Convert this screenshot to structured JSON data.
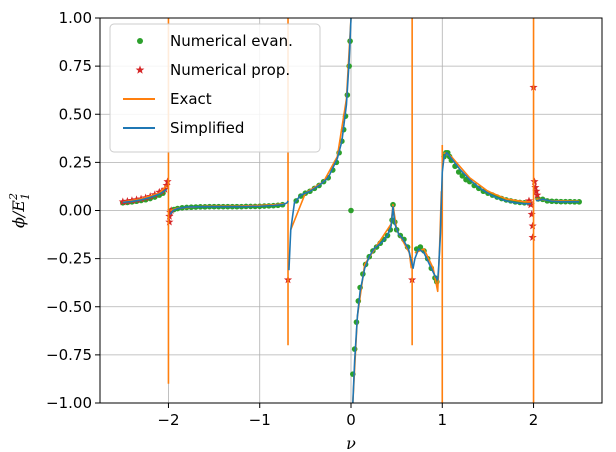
{
  "chart_data": {
    "type": "scatter",
    "title": "",
    "xlabel": "ν",
    "ylabel_main": "ϕ/E",
    "ylabel_sub": "1",
    "ylabel_sup": "2",
    "xlim": [
      -2.75,
      2.75
    ],
    "ylim": [
      -1.0,
      1.0
    ],
    "x_ticks": [
      -2,
      -1,
      0,
      1,
      2
    ],
    "x_tick_labels": [
      "−2",
      "−1",
      "0",
      "1",
      "2"
    ],
    "y_ticks": [
      -1.0,
      -0.75,
      -0.5,
      -0.25,
      0.0,
      0.25,
      0.5,
      0.75,
      1.0
    ],
    "y_tick_labels": [
      "−1.00",
      "−0.75",
      "−0.50",
      "−0.25",
      "0.00",
      "0.25",
      "0.50",
      "0.75",
      "1.00"
    ],
    "grid": true,
    "legend_position": "top-left",
    "legend": [
      {
        "label": "Numerical evan.",
        "marker": "dot",
        "color": "#2ca02c"
      },
      {
        "label": "Numerical prop.",
        "marker": "star",
        "color": "#d62728"
      },
      {
        "label": "Exact",
        "marker": "line",
        "color": "#ff7f0e"
      },
      {
        "label": "Simplified",
        "marker": "line",
        "color": "#1f77b4"
      }
    ],
    "colors": {
      "evan": "#2ca02c",
      "prop": "#d62728",
      "exact": "#ff7f0e",
      "simplified": "#1f77b4",
      "grid": "#b0b0b0"
    },
    "series": [
      {
        "name": "Simplified",
        "kind": "line",
        "segments": [
          [
            [
              -2.5,
              0.042
            ],
            [
              -2.4,
              0.047
            ],
            [
              -2.3,
              0.055
            ],
            [
              -2.2,
              0.068
            ],
            [
              -2.1,
              0.085
            ],
            [
              -2.05,
              0.1
            ],
            [
              -2.02,
              0.11
            ]
          ],
          [
            [
              -1.98,
              -0.02
            ],
            [
              -1.95,
              0.0
            ],
            [
              -1.9,
              0.01
            ],
            [
              -1.8,
              0.018
            ],
            [
              -1.6,
              0.02
            ],
            [
              -1.4,
              0.02
            ],
            [
              -1.2,
              0.02
            ],
            [
              -1.0,
              0.022
            ],
            [
              -0.85,
              0.026
            ],
            [
              -0.75,
              0.03
            ],
            [
              -0.7,
              0.04
            ],
            [
              -0.69,
              0.05
            ]
          ],
          [
            [
              -0.68,
              -0.31
            ],
            [
              -0.66,
              -0.1
            ],
            [
              -0.62,
              0.04
            ],
            [
              -0.55,
              0.08
            ],
            [
              -0.45,
              0.1
            ],
            [
              -0.35,
              0.13
            ],
            [
              -0.25,
              0.17
            ],
            [
              -0.15,
              0.27
            ],
            [
              -0.1,
              0.36
            ],
            [
              -0.05,
              0.55
            ],
            [
              -0.02,
              0.78
            ],
            [
              0.0,
              1.0
            ]
          ],
          [
            [
              0.02,
              -1.0
            ],
            [
              0.04,
              -0.78
            ],
            [
              0.07,
              -0.55
            ],
            [
              0.1,
              -0.42
            ],
            [
              0.15,
              -0.3
            ],
            [
              0.2,
              -0.24
            ],
            [
              0.25,
              -0.2
            ],
            [
              0.3,
              -0.18
            ],
            [
              0.35,
              -0.16
            ],
            [
              0.4,
              -0.13
            ],
            [
              0.44,
              -0.08
            ],
            [
              0.46,
              0.02
            ],
            [
              0.48,
              -0.07
            ],
            [
              0.52,
              -0.12
            ],
            [
              0.57,
              -0.15
            ],
            [
              0.63,
              -0.2
            ],
            [
              0.66,
              -0.26
            ],
            [
              0.68,
              -0.3
            ],
            [
              0.7,
              -0.25
            ],
            [
              0.74,
              -0.2
            ],
            [
              0.8,
              -0.22
            ],
            [
              0.86,
              -0.28
            ],
            [
              0.92,
              -0.34
            ],
            [
              0.95,
              -0.36
            ],
            [
              0.96,
              -0.3
            ],
            [
              0.98,
              -0.12
            ],
            [
              0.99,
              0.05
            ],
            [
              1.0,
              0.2
            ],
            [
              1.02,
              0.28
            ],
            [
              1.05,
              0.3
            ],
            [
              1.1,
              0.27
            ],
            [
              1.2,
              0.21
            ],
            [
              1.3,
              0.16
            ],
            [
              1.4,
              0.12
            ],
            [
              1.5,
              0.09
            ],
            [
              1.6,
              0.065
            ],
            [
              1.7,
              0.05
            ],
            [
              1.8,
              0.04
            ],
            [
              1.9,
              0.035
            ],
            [
              1.97,
              0.035
            ]
          ],
          [
            [
              2.03,
              0.05
            ],
            [
              2.1,
              0.058
            ],
            [
              2.2,
              0.048
            ],
            [
              2.3,
              0.045
            ],
            [
              2.4,
              0.045
            ],
            [
              2.5,
              0.045
            ]
          ]
        ]
      },
      {
        "name": "Exact",
        "kind": "line",
        "segments": [
          [
            [
              -2.5,
              0.044
            ],
            [
              -2.3,
              0.06
            ],
            [
              -2.1,
              0.09
            ],
            [
              -2.02,
              0.13
            ]
          ],
          [
            [
              -2.0,
              1.0
            ],
            [
              -2.0,
              -0.9
            ]
          ],
          [
            [
              -1.98,
              0.0
            ],
            [
              -1.9,
              0.012
            ],
            [
              -1.6,
              0.022
            ],
            [
              -1.2,
              0.023
            ],
            [
              -0.9,
              0.028
            ],
            [
              -0.72,
              0.035
            ]
          ],
          [
            [
              -0.69,
              1.0
            ],
            [
              -0.69,
              -0.7
            ]
          ],
          [
            [
              -0.66,
              -0.1
            ],
            [
              -0.5,
              0.09
            ],
            [
              -0.3,
              0.15
            ],
            [
              -0.15,
              0.28
            ],
            [
              -0.05,
              0.58
            ],
            [
              0.0,
              1.0
            ]
          ],
          [
            [
              0.02,
              -1.0
            ],
            [
              0.07,
              -0.55
            ],
            [
              0.15,
              -0.28
            ],
            [
              0.3,
              -0.17
            ],
            [
              0.44,
              -0.07
            ],
            [
              0.46,
              0.03
            ],
            [
              0.5,
              -0.1
            ],
            [
              0.64,
              -0.22
            ],
            [
              0.66,
              -0.3
            ]
          ],
          [
            [
              0.67,
              1.0
            ],
            [
              0.67,
              -0.7
            ]
          ],
          [
            [
              0.7,
              -0.22
            ],
            [
              0.8,
              -0.2
            ],
            [
              0.9,
              -0.3
            ],
            [
              0.95,
              -0.42
            ],
            [
              0.97,
              -0.2
            ],
            [
              0.99,
              0.1
            ]
          ],
          [
            [
              1.0,
              0.34
            ],
            [
              1.0,
              -1.0
            ]
          ],
          [
            [
              1.02,
              0.3
            ],
            [
              1.1,
              0.28
            ],
            [
              1.3,
              0.17
            ],
            [
              1.5,
              0.1
            ],
            [
              1.7,
              0.06
            ],
            [
              1.9,
              0.045
            ],
            [
              1.97,
              0.045
            ]
          ],
          [
            [
              2.0,
              1.0
            ],
            [
              2.0,
              -1.0
            ]
          ],
          [
            [
              2.03,
              0.06
            ],
            [
              2.2,
              0.05
            ],
            [
              2.5,
              0.048
            ]
          ]
        ]
      },
      {
        "name": "Numerical evan.",
        "kind": "points",
        "points": [
          [
            -2.5,
            0.04
          ],
          [
            -2.45,
            0.042
          ],
          [
            -2.4,
            0.045
          ],
          [
            -2.35,
            0.048
          ],
          [
            -2.3,
            0.052
          ],
          [
            -2.25,
            0.056
          ],
          [
            -2.2,
            0.062
          ],
          [
            -2.15,
            0.07
          ],
          [
            -2.1,
            0.08
          ],
          [
            -2.06,
            0.09
          ],
          [
            -1.97,
            0.0
          ],
          [
            -1.94,
            0.005
          ],
          [
            -1.9,
            0.01
          ],
          [
            -1.85,
            0.014
          ],
          [
            -1.8,
            0.016
          ],
          [
            -1.75,
            0.017
          ],
          [
            -1.7,
            0.018
          ],
          [
            -1.65,
            0.019
          ],
          [
            -1.6,
            0.019
          ],
          [
            -1.55,
            0.02
          ],
          [
            -1.5,
            0.02
          ],
          [
            -1.45,
            0.02
          ],
          [
            -1.4,
            0.02
          ],
          [
            -1.35,
            0.02
          ],
          [
            -1.3,
            0.02
          ],
          [
            -1.25,
            0.02
          ],
          [
            -1.2,
            0.02
          ],
          [
            -1.15,
            0.021
          ],
          [
            -1.1,
            0.021
          ],
          [
            -1.05,
            0.021
          ],
          [
            -1.0,
            0.022
          ],
          [
            -0.95,
            0.023
          ],
          [
            -0.9,
            0.024
          ],
          [
            -0.85,
            0.025
          ],
          [
            -0.8,
            0.027
          ],
          [
            -0.75,
            0.03
          ],
          [
            -0.6,
            0.05
          ],
          [
            -0.55,
            0.075
          ],
          [
            -0.5,
            0.09
          ],
          [
            -0.45,
            0.1
          ],
          [
            -0.4,
            0.115
          ],
          [
            -0.35,
            0.13
          ],
          [
            -0.3,
            0.15
          ],
          [
            -0.25,
            0.17
          ],
          [
            -0.2,
            0.21
          ],
          [
            -0.16,
            0.25
          ],
          [
            -0.13,
            0.3
          ],
          [
            -0.1,
            0.36
          ],
          [
            -0.08,
            0.42
          ],
          [
            -0.06,
            0.49
          ],
          [
            -0.04,
            0.6
          ],
          [
            -0.02,
            0.75
          ],
          [
            -0.01,
            0.88
          ],
          [
            0.0,
            0.0
          ],
          [
            0.02,
            -0.85
          ],
          [
            0.04,
            -0.72
          ],
          [
            0.06,
            -0.58
          ],
          [
            0.08,
            -0.47
          ],
          [
            0.1,
            -0.4
          ],
          [
            0.13,
            -0.33
          ],
          [
            0.16,
            -0.28
          ],
          [
            0.2,
            -0.24
          ],
          [
            0.24,
            -0.21
          ],
          [
            0.28,
            -0.19
          ],
          [
            0.32,
            -0.17
          ],
          [
            0.36,
            -0.15
          ],
          [
            0.4,
            -0.13
          ],
          [
            0.43,
            -0.1
          ],
          [
            0.45,
            -0.05
          ],
          [
            0.46,
            0.03
          ],
          [
            0.48,
            -0.06
          ],
          [
            0.5,
            -0.1
          ],
          [
            0.54,
            -0.13
          ],
          [
            0.58,
            -0.15
          ],
          [
            0.62,
            -0.19
          ],
          [
            0.72,
            -0.2
          ],
          [
            0.76,
            -0.19
          ],
          [
            0.8,
            -0.21
          ],
          [
            0.84,
            -0.25
          ],
          [
            0.88,
            -0.3
          ],
          [
            0.92,
            -0.35
          ],
          [
            0.94,
            -0.37
          ],
          [
            1.02,
            0.28
          ],
          [
            1.04,
            0.3
          ],
          [
            1.06,
            0.3
          ],
          [
            1.08,
            0.28
          ],
          [
            1.1,
            0.26
          ],
          [
            1.14,
            0.23
          ],
          [
            1.18,
            0.2
          ],
          [
            1.22,
            0.18
          ],
          [
            1.26,
            0.16
          ],
          [
            1.3,
            0.15
          ],
          [
            1.35,
            0.13
          ],
          [
            1.4,
            0.115
          ],
          [
            1.45,
            0.1
          ],
          [
            1.5,
            0.09
          ],
          [
            1.55,
            0.08
          ],
          [
            1.6,
            0.07
          ],
          [
            1.65,
            0.062
          ],
          [
            1.7,
            0.055
          ],
          [
            1.75,
            0.05
          ],
          [
            1.8,
            0.045
          ],
          [
            1.85,
            0.042
          ],
          [
            1.9,
            0.04
          ],
          [
            1.95,
            0.04
          ],
          [
            2.05,
            0.06
          ],
          [
            2.1,
            0.058
          ],
          [
            2.15,
            0.05
          ],
          [
            2.2,
            0.048
          ],
          [
            2.25,
            0.047
          ],
          [
            2.3,
            0.046
          ],
          [
            2.35,
            0.046
          ],
          [
            2.4,
            0.046
          ],
          [
            2.45,
            0.045
          ],
          [
            2.5,
            0.045
          ]
        ]
      },
      {
        "name": "Numerical prop.",
        "kind": "stars",
        "points": [
          [
            -2.5,
            0.045
          ],
          [
            -2.45,
            0.048
          ],
          [
            -2.4,
            0.052
          ],
          [
            -2.35,
            0.056
          ],
          [
            -2.3,
            0.06
          ],
          [
            -2.25,
            0.066
          ],
          [
            -2.2,
            0.073
          ],
          [
            -2.15,
            0.082
          ],
          [
            -2.1,
            0.095
          ],
          [
            -2.07,
            0.1
          ],
          [
            -2.04,
            0.11
          ],
          [
            -2.02,
            0.13
          ],
          [
            -2.01,
            0.15
          ],
          [
            -1.99,
            -0.06
          ],
          [
            -1.99,
            -0.03
          ],
          [
            -1.98,
            -0.01
          ],
          [
            -1.97,
            0.0
          ],
          [
            -0.69,
            -0.36
          ],
          [
            0.67,
            -0.36
          ],
          [
            1.95,
            0.05
          ],
          [
            1.96,
            0.04
          ],
          [
            1.97,
            0.03
          ],
          [
            1.98,
            -0.02
          ],
          [
            1.99,
            -0.08
          ],
          [
            1.99,
            -0.14
          ],
          [
            2.0,
            0.64
          ],
          [
            2.01,
            0.15
          ],
          [
            2.02,
            0.12
          ],
          [
            2.03,
            0.1
          ],
          [
            2.04,
            0.08
          ]
        ]
      }
    ]
  }
}
